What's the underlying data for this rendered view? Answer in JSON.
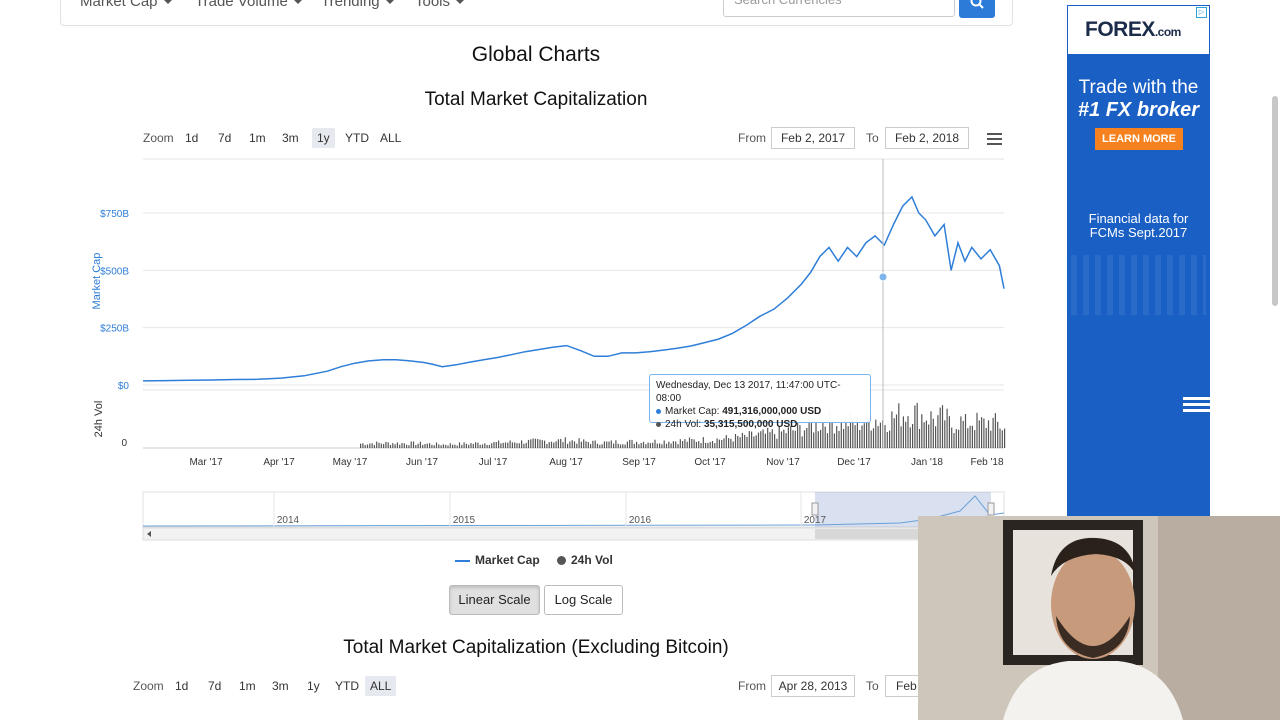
{
  "nav": {
    "items": [
      "Market Cap",
      "Trade Volume",
      "Trending",
      "Tools"
    ],
    "search_placeholder": "Search Currencies"
  },
  "page_title": "Global Charts",
  "chart1": {
    "title": "Total Market Capitalization",
    "zoom_label": "Zoom",
    "zoom_buttons": [
      "1d",
      "7d",
      "1m",
      "3m",
      "1y",
      "YTD",
      "ALL"
    ],
    "zoom_active": "1y",
    "from_label": "From",
    "from_value": "Feb 2, 2017",
    "to_label": "To",
    "to_value": "Feb 2, 2018",
    "tooltip": {
      "date": "Wednesday, Dec 13 2017, 11:47:00 UTC-08:00",
      "market_cap_label": "Market Cap:",
      "market_cap_value": "491,316,000,000 USD",
      "vol_label": "24h Vol:",
      "vol_value": "35,315,500,000 USD"
    }
  },
  "legend": {
    "market_cap": "Market Cap",
    "vol": "24h Vol"
  },
  "scale_buttons": {
    "linear": "Linear Scale",
    "log": "Log Scale"
  },
  "chart2": {
    "title": "Total Market Capitalization (Excluding Bitcoin)",
    "zoom_label": "Zoom",
    "zoom_buttons": [
      "1d",
      "7d",
      "1m",
      "3m",
      "1y",
      "YTD",
      "ALL"
    ],
    "zoom_active": "ALL",
    "from_label": "From",
    "from_value": "Apr 28, 2013",
    "to_label": "To",
    "to_value": "Feb"
  },
  "ad": {
    "logo_main": "FOREX",
    "logo_suffix": ".com",
    "headline_1": "Trade with the",
    "headline_2": "#1 FX broker",
    "button": "LEARN MORE",
    "sub_1": "Financial data for",
    "sub_2": "FCMs Sept.2017"
  },
  "colors": {
    "series": "#2f7ed8",
    "volume": "#555555",
    "accent": "#2c7bd8",
    "ad_bg": "#1a5fc4",
    "ad_button": "#f5821f"
  },
  "chart_data": {
    "type": "line",
    "title": "Total Market Capitalization",
    "ylabel": "Market Cap",
    "ylabel_volume": "24h Vol",
    "y_ticks": [
      "$0",
      "$250B",
      "$500B",
      "$750B"
    ],
    "y_tick_values": [
      0,
      250,
      500,
      750
    ],
    "ylim": [
      0,
      800
    ],
    "volume_ticks": [
      "0"
    ],
    "x_ticks": [
      "Mar '17",
      "Apr '17",
      "May '17",
      "Jun '17",
      "Jul '17",
      "Aug '17",
      "Sep '17",
      "Oct '17",
      "Nov '17",
      "Dec '17",
      "Jan '18",
      "Feb '18"
    ],
    "x_range_months": [
      0,
      12.1
    ],
    "navigator_ticks": [
      "2014",
      "2015",
      "2016",
      "2017"
    ],
    "series": [
      {
        "name": "Market Cap",
        "unit": "B USD",
        "points": [
          [
            0,
            18
          ],
          [
            0.5,
            19
          ],
          [
            1,
            21
          ],
          [
            1.5,
            22
          ],
          [
            2,
            24
          ],
          [
            2.5,
            25
          ],
          [
            3,
            30
          ],
          [
            3.5,
            40
          ],
          [
            4,
            60
          ],
          [
            4.3,
            80
          ],
          [
            4.6,
            95
          ],
          [
            4.9,
            105
          ],
          [
            5.2,
            110
          ],
          [
            5.5,
            110
          ],
          [
            5.8,
            105
          ],
          [
            6.1,
            98
          ],
          [
            6.3,
            90
          ],
          [
            6.5,
            80
          ],
          [
            6.8,
            88
          ],
          [
            7.1,
            100
          ],
          [
            7.4,
            110
          ],
          [
            7.7,
            120
          ],
          [
            8.0,
            132
          ],
          [
            8.3,
            145
          ],
          [
            8.6,
            155
          ],
          [
            8.9,
            165
          ],
          [
            9.2,
            172
          ],
          [
            9.5,
            150
          ],
          [
            9.8,
            125
          ],
          [
            10.1,
            125
          ],
          [
            10.4,
            140
          ],
          [
            10.7,
            140
          ],
          [
            11.0,
            145
          ],
          [
            11.3,
            152
          ],
          [
            11.6,
            160
          ],
          [
            11.9,
            170
          ],
          [
            12.2,
            185
          ],
          [
            12.5,
            200
          ],
          [
            12.8,
            225
          ],
          [
            13.1,
            260
          ],
          [
            13.4,
            300
          ],
          [
            13.7,
            330
          ],
          [
            14.0,
            380
          ],
          [
            14.3,
            440
          ],
          [
            14.5,
            491
          ],
          [
            14.7,
            560
          ],
          [
            14.9,
            600
          ],
          [
            15.1,
            540
          ],
          [
            15.3,
            600
          ],
          [
            15.5,
            560
          ],
          [
            15.7,
            620
          ],
          [
            15.9,
            650
          ],
          [
            16.1,
            610
          ],
          [
            16.3,
            700
          ],
          [
            16.5,
            780
          ],
          [
            16.7,
            820
          ],
          [
            16.85,
            750
          ],
          [
            17.0,
            720
          ],
          [
            17.2,
            650
          ],
          [
            17.4,
            700
          ],
          [
            17.55,
            500
          ],
          [
            17.7,
            620
          ],
          [
            17.85,
            540
          ],
          [
            18.0,
            600
          ],
          [
            18.2,
            550
          ],
          [
            18.4,
            590
          ],
          [
            18.6,
            520
          ],
          [
            18.7,
            420
          ]
        ]
      }
    ],
    "tooltip_point": {
      "date": "Dec 13 2017",
      "market_cap_B": 491.316,
      "volume_B": 35.3155
    }
  }
}
